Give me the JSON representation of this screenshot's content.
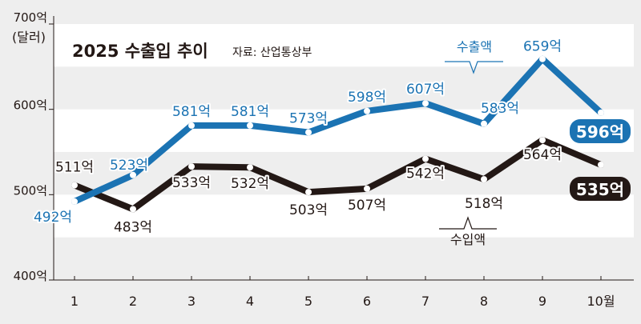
{
  "chart_data": {
    "type": "line",
    "title": "2025 수출입 추이",
    "source": "자료: 산업통상부",
    "unit": "(달러)",
    "categories": [
      "1",
      "2",
      "3",
      "4",
      "5",
      "6",
      "7",
      "8",
      "9",
      "10월"
    ],
    "ylim": [
      400,
      700
    ],
    "yticks": [
      {
        "value": 400,
        "label": "400억"
      },
      {
        "value": 500,
        "label": "500억"
      },
      {
        "value": 600,
        "label": "600억"
      },
      {
        "value": 700,
        "label": "700억"
      }
    ],
    "grid": "alternating horizontal bands",
    "series": [
      {
        "name": "수출액",
        "color": "#1b73b3",
        "values": [
          492,
          523,
          581,
          581,
          573,
          598,
          607,
          583,
          659,
          596
        ],
        "labels": [
          "492억",
          "523억",
          "581억",
          "581억",
          "573억",
          "598억",
          "607억",
          "583억",
          "659억",
          "596억"
        ]
      },
      {
        "name": "수입액",
        "color": "#231815",
        "values": [
          511,
          483,
          533,
          532,
          503,
          507,
          542,
          518,
          564,
          535
        ],
        "labels": [
          "511억",
          "483억",
          "533억",
          "532억",
          "503억",
          "507억",
          "542억",
          "518억",
          "564억",
          "535억"
        ]
      }
    ]
  }
}
